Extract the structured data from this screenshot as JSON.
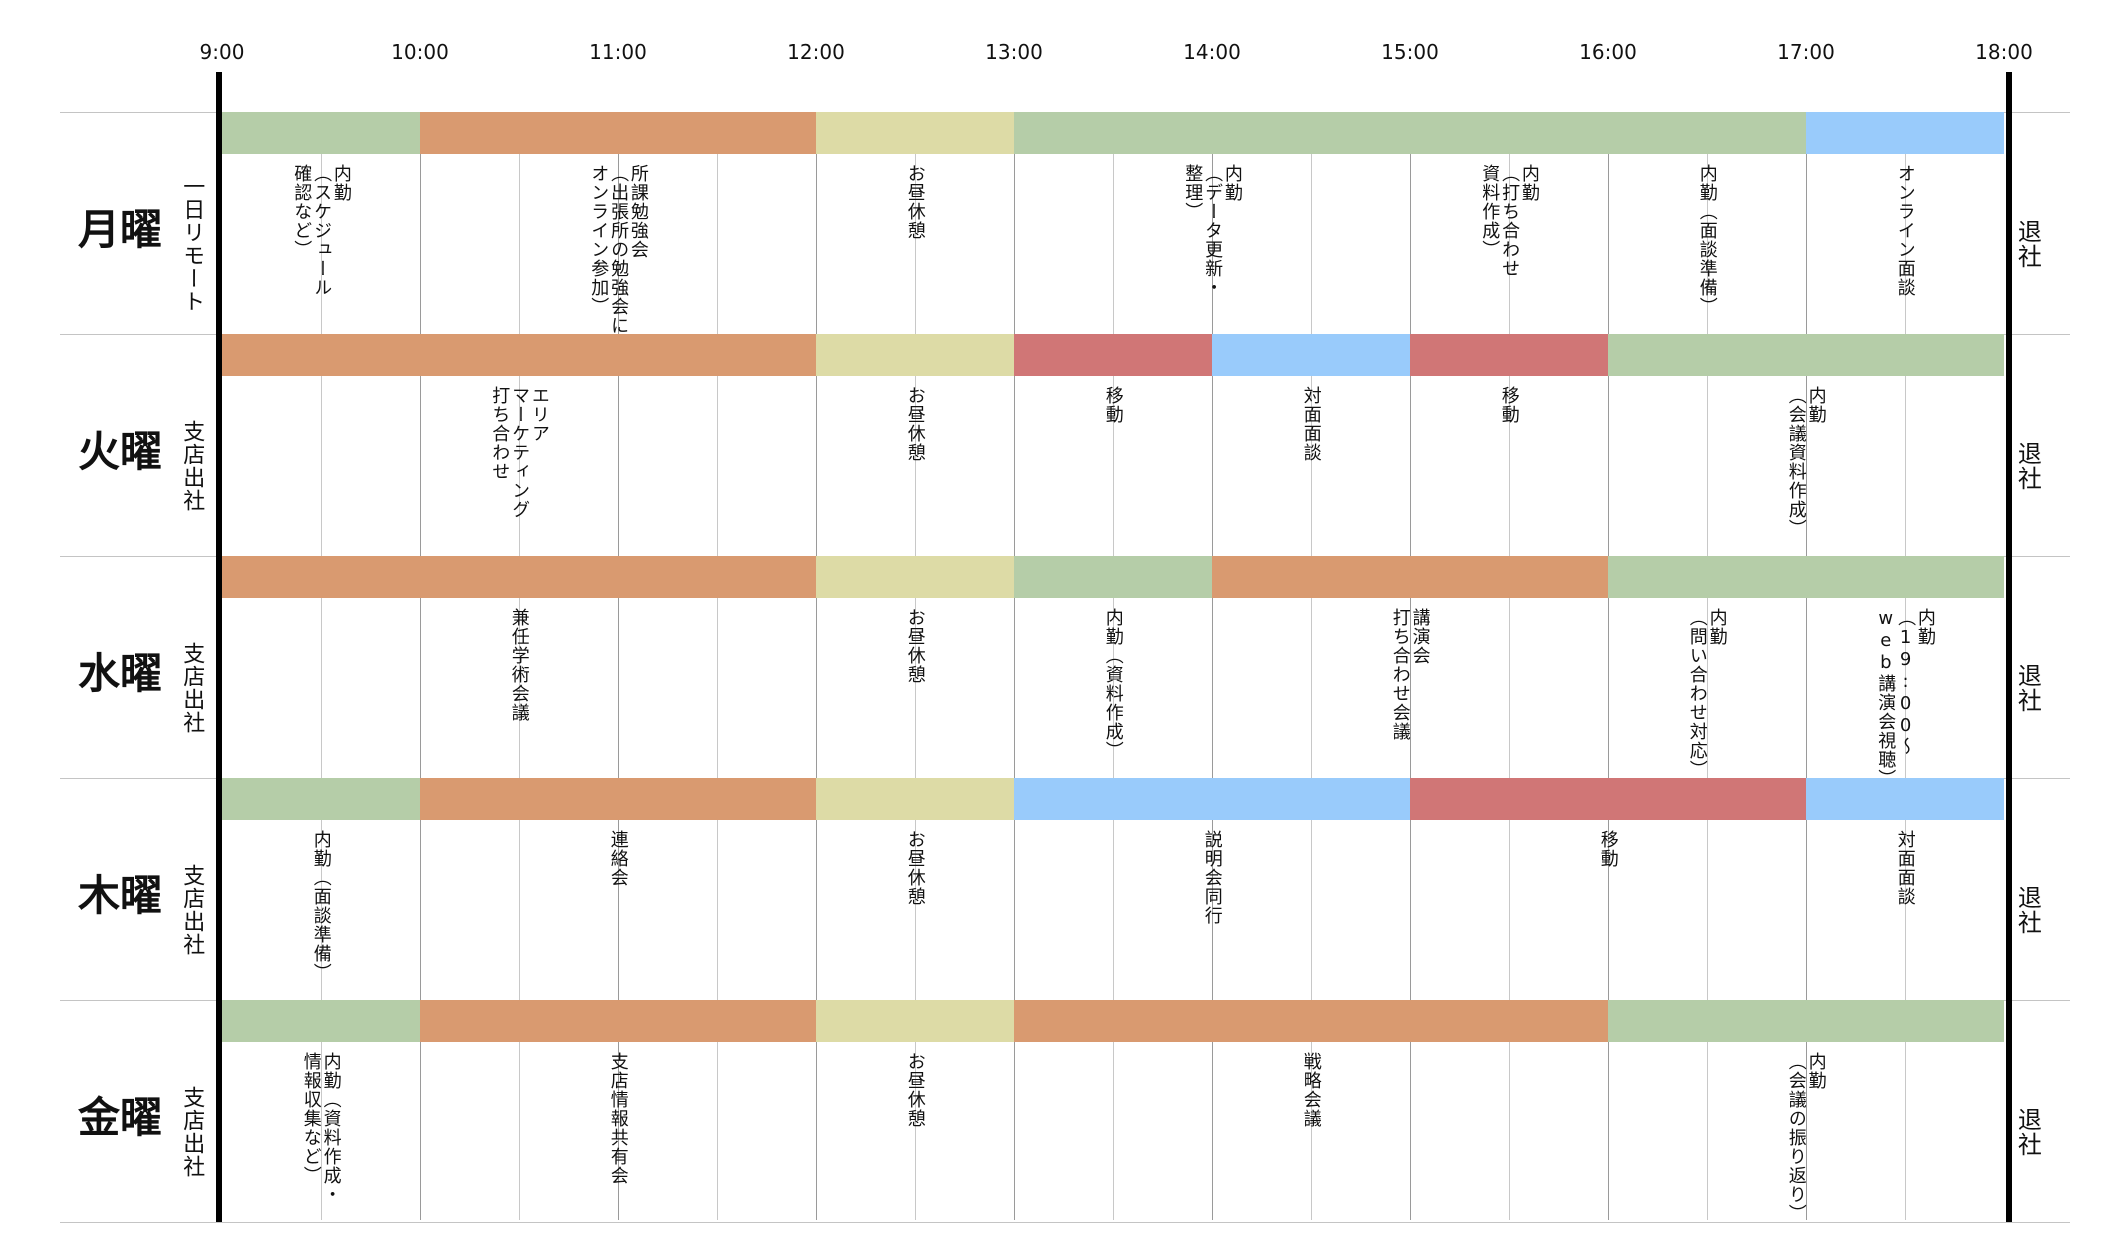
{
  "times": [
    "9:00",
    "10:00",
    "11:00",
    "12:00",
    "13:00",
    "14:00",
    "15:00",
    "16:00",
    "17:00",
    "18:00"
  ],
  "colors": {
    "green": "#b5cda8",
    "orange": "#d99a70",
    "yellow": "#dddba6",
    "blue": "#99cbfb",
    "red": "#d07676"
  },
  "days": [
    {
      "name": "月曜",
      "location": "一日リモート",
      "end_label": "退社",
      "blocks": [
        {
          "start": 9,
          "end": 10,
          "color": "green",
          "label": "内勤\n（スケジュール\n確認など）"
        },
        {
          "start": 10,
          "end": 12,
          "color": "orange",
          "label": "所課勉強会\n（出張所の勉強会に\nオンライン参加）"
        },
        {
          "start": 12,
          "end": 13,
          "color": "yellow",
          "label": "お昼休憩"
        },
        {
          "start": 13,
          "end": 15,
          "color": "green",
          "label": "内勤\n（データ更新・\n整理）"
        },
        {
          "start": 15,
          "end": 16,
          "color": "green",
          "label": "内勤\n（打ち合わせ\n資料作成）"
        },
        {
          "start": 16,
          "end": 17,
          "color": "green",
          "label": "内勤（面談準備）"
        },
        {
          "start": 17,
          "end": 18,
          "color": "blue",
          "label": "オンライン面談"
        }
      ]
    },
    {
      "name": "火曜",
      "location": "支店出社",
      "end_label": "退社",
      "blocks": [
        {
          "start": 9,
          "end": 12,
          "color": "orange",
          "label": "エリア\nマーケティング\n打ち合わせ"
        },
        {
          "start": 12,
          "end": 13,
          "color": "yellow",
          "label": "お昼休憩"
        },
        {
          "start": 13,
          "end": 14,
          "color": "red",
          "label": "移動"
        },
        {
          "start": 14,
          "end": 15,
          "color": "blue",
          "label": "対面面談"
        },
        {
          "start": 15,
          "end": 16,
          "color": "red",
          "label": "移動"
        },
        {
          "start": 16,
          "end": 18,
          "color": "green",
          "label": "内勤\n（会議資料作成）"
        }
      ]
    },
    {
      "name": "水曜",
      "location": "支店出社",
      "end_label": "退社",
      "blocks": [
        {
          "start": 9,
          "end": 12,
          "color": "orange",
          "label": "兼任学術会議"
        },
        {
          "start": 12,
          "end": 13,
          "color": "yellow",
          "label": "お昼休憩"
        },
        {
          "start": 13,
          "end": 14,
          "color": "green",
          "label": "内勤（資料作成）"
        },
        {
          "start": 14,
          "end": 16,
          "color": "orange",
          "label": "講演会\n打ち合わせ会議"
        },
        {
          "start": 16,
          "end": 17,
          "color": "green",
          "label": "内勤\n（問い合わせ対応）"
        },
        {
          "start": 17,
          "end": 18,
          "color": "green",
          "label": "内勤\n（19:00～\nweb講演会視聴）"
        }
      ]
    },
    {
      "name": "木曜",
      "location": "支店出社",
      "end_label": "退社",
      "blocks": [
        {
          "start": 9,
          "end": 10,
          "color": "green",
          "label": "内勤（面談準備）"
        },
        {
          "start": 10,
          "end": 12,
          "color": "orange",
          "label": "連絡会"
        },
        {
          "start": 12,
          "end": 13,
          "color": "yellow",
          "label": "お昼休憩"
        },
        {
          "start": 13,
          "end": 15,
          "color": "blue",
          "label": "説明会同行"
        },
        {
          "start": 15,
          "end": 17,
          "color": "red",
          "label": "移動"
        },
        {
          "start": 17,
          "end": 18,
          "color": "blue",
          "label": "対面面談"
        }
      ]
    },
    {
      "name": "金曜",
      "location": "支店出社",
      "end_label": "退社",
      "blocks": [
        {
          "start": 9,
          "end": 10,
          "color": "green",
          "label": "内勤（資料作成・\n情報収集など）"
        },
        {
          "start": 10,
          "end": 12,
          "color": "orange",
          "label": "支店情報共有会"
        },
        {
          "start": 12,
          "end": 13,
          "color": "yellow",
          "label": "お昼休憩"
        },
        {
          "start": 13,
          "end": 16,
          "color": "orange",
          "label": "戦略会議"
        },
        {
          "start": 16,
          "end": 18,
          "color": "green",
          "label": "内勤\n（会議の振り返り）"
        }
      ]
    }
  ]
}
